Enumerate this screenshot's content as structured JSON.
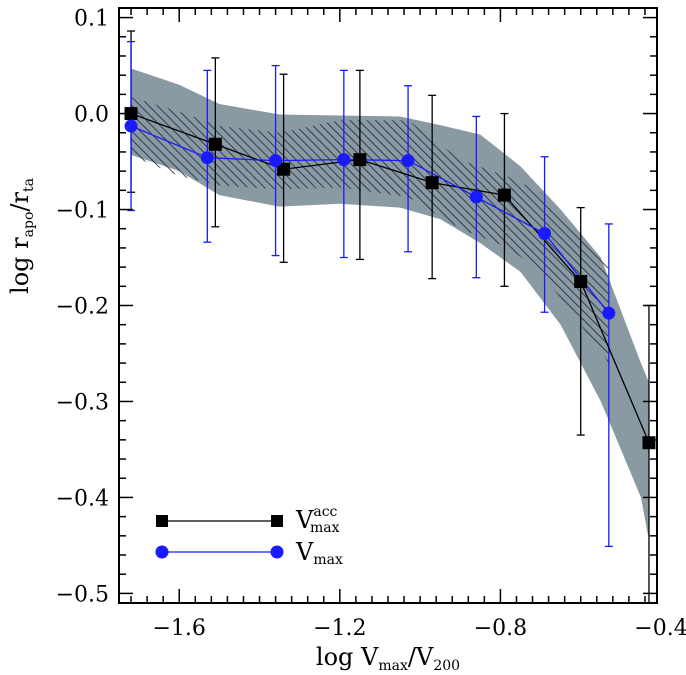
{
  "chart_data": {
    "type": "line",
    "xlabel": "log V_max/V_200",
    "ylabel": "log r_apo/r_ta",
    "xlabel_parts": {
      "main": "log  V",
      "sub": "max",
      "slash": "/V",
      "sub2": "200"
    },
    "ylabel_parts": {
      "main": "log  r",
      "sub": "apo",
      "slash": "/r",
      "sub2": "ta"
    },
    "xlim": [
      -1.75,
      -0.41
    ],
    "ylim": [
      -0.51,
      0.11
    ],
    "xticks": [
      -1.6,
      -1.2,
      -0.8,
      -0.4
    ],
    "xtick_labels": [
      "−1.6",
      "−1.2",
      "−0.8",
      "−0.4"
    ],
    "yticks": [
      0.1,
      0.0,
      -0.1,
      -0.2,
      -0.3,
      -0.4,
      -0.5
    ],
    "ytick_labels": [
      "0.1",
      "0.0",
      "−0.1",
      "−0.2",
      "−0.3",
      "−0.4",
      "−0.5"
    ],
    "series": [
      {
        "name": "V_max^acc",
        "color": "#000000",
        "marker": "square",
        "x": [
          -1.72,
          -1.51,
          -1.34,
          -1.15,
          -0.97,
          -0.79,
          -0.6,
          -0.43
        ],
        "y": [
          0.0,
          -0.032,
          -0.058,
          -0.048,
          -0.072,
          -0.085,
          -0.175,
          -0.343
        ],
        "err_low": [
          -0.082,
          -0.118,
          -0.155,
          -0.152,
          -0.172,
          -0.18,
          -0.335,
          -0.51
        ],
        "err_high": [
          0.086,
          0.058,
          0.041,
          0.045,
          0.019,
          0.0,
          -0.098,
          -0.2
        ]
      },
      {
        "name": "V_max",
        "color": "#1a1aff",
        "marker": "circle",
        "x": [
          -1.72,
          -1.53,
          -1.36,
          -1.19,
          -1.03,
          -0.86,
          -0.69,
          -0.53
        ],
        "y": [
          -0.013,
          -0.046,
          -0.049,
          -0.048,
          -0.049,
          -0.087,
          -0.125,
          -0.208
        ],
        "err_low": [
          -0.101,
          -0.134,
          -0.148,
          -0.15,
          -0.144,
          -0.171,
          -0.207,
          -0.451
        ],
        "err_high": [
          0.075,
          0.045,
          0.05,
          0.045,
          0.029,
          -0.003,
          -0.045,
          -0.115
        ]
      }
    ],
    "bands": [
      {
        "name": "grey-shaded-band",
        "color": "#8a9aa2",
        "x": [
          -1.72,
          -1.6,
          -1.5,
          -1.35,
          -1.2,
          -1.05,
          -0.95,
          -0.85,
          -0.75,
          -0.65,
          -0.55,
          -0.45,
          -0.43
        ],
        "upper": [
          0.047,
          0.03,
          0.01,
          -0.001,
          -0.002,
          -0.003,
          -0.012,
          -0.022,
          -0.055,
          -0.1,
          -0.15,
          -0.26,
          -0.28
        ],
        "lower": [
          -0.043,
          -0.06,
          -0.085,
          -0.097,
          -0.094,
          -0.098,
          -0.11,
          -0.135,
          -0.165,
          -0.22,
          -0.3,
          -0.4,
          -0.445
        ]
      },
      {
        "name": "hatched-band",
        "color": "#1a2340",
        "x": [
          -1.72,
          -1.6,
          -1.5,
          -1.35,
          -1.2,
          -1.03,
          -0.9,
          -0.78,
          -0.7,
          -0.6,
          -0.53
        ],
        "upper": [
          0.017,
          0.002,
          -0.013,
          -0.02,
          -0.007,
          -0.007,
          -0.048,
          -0.066,
          -0.082,
          -0.13,
          -0.16
        ],
        "lower": [
          -0.044,
          -0.065,
          -0.075,
          -0.079,
          -0.077,
          -0.087,
          -0.12,
          -0.14,
          -0.165,
          -0.22,
          -0.26
        ]
      }
    ],
    "legend": {
      "position": "bottom-left",
      "entries": [
        {
          "label_main": "V",
          "label_sup": "acc",
          "label_sub": "max",
          "color": "#000000",
          "marker": "square"
        },
        {
          "label_main": "V",
          "label_sup": "",
          "label_sub": "max",
          "color": "#1a1aff",
          "marker": "circle"
        }
      ]
    }
  }
}
